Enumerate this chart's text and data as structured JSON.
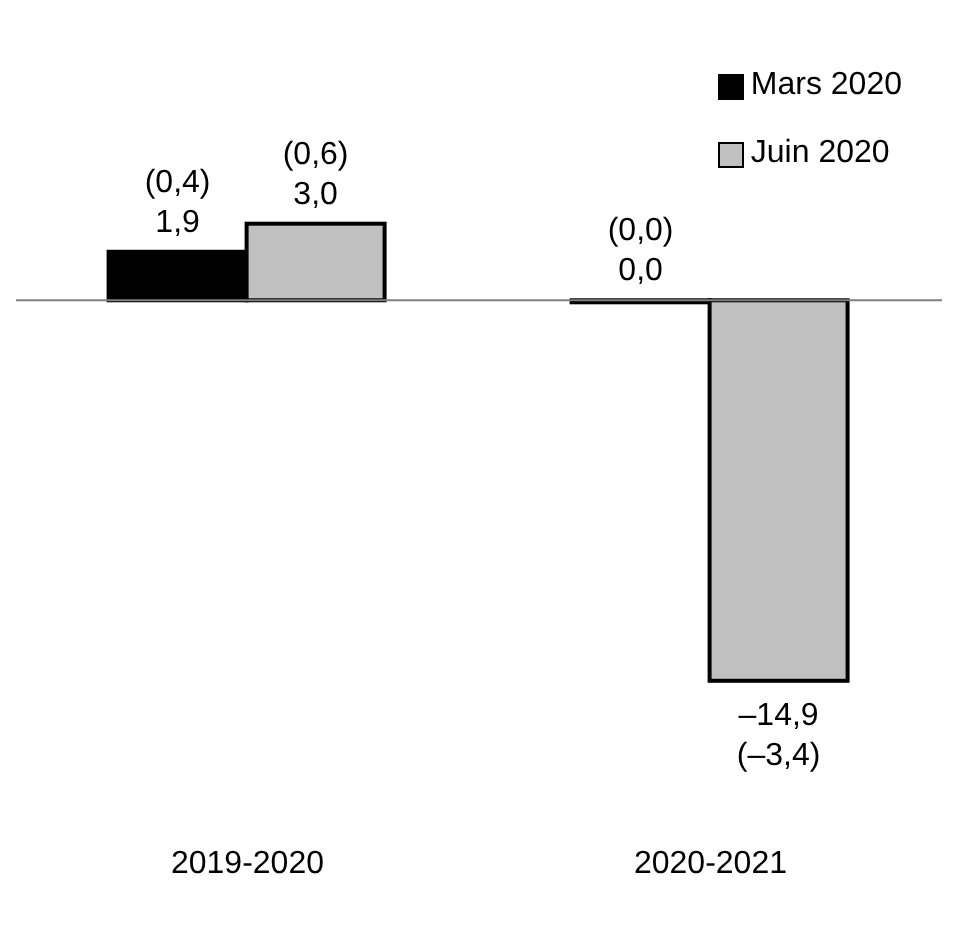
{
  "chart_data": {
    "type": "bar",
    "categories": [
      "2019-2020",
      "2020-2021"
    ],
    "series": [
      {
        "name": "Mars 2020",
        "color": "#000000",
        "values": [
          1.9,
          0.0
        ],
        "value_labels": [
          "(0,4)\n1,9",
          "(0,0)\n0,0"
        ]
      },
      {
        "name": "Juin 2020",
        "color": "#c0c0c0",
        "values": [
          3.0,
          -14.9
        ],
        "value_labels": [
          "(0,6)\n3,0",
          "–14,9\n(–3,4)"
        ]
      }
    ],
    "legend": "top right",
    "tick_labels": "x"
  }
}
